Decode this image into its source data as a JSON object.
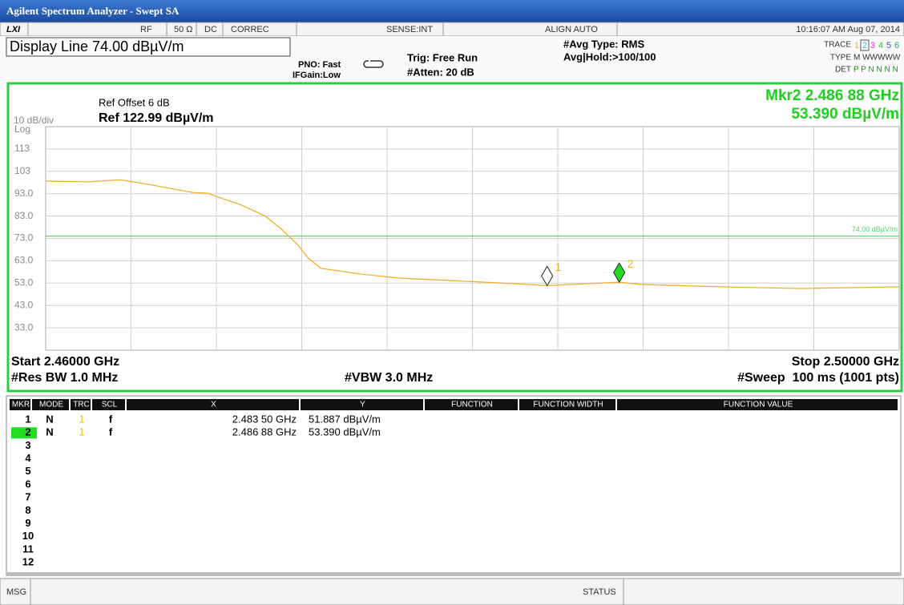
{
  "window_title": "Agilent Spectrum Analyzer - Swept SA",
  "status_bar": {
    "logo": "LXI",
    "rf": "RF",
    "impedance": "50 Ω",
    "coupling": "DC",
    "correction": "CORREC",
    "sense": "SENSE:INT",
    "align": "ALIGN AUTO",
    "datetime": "10:16:07 AM Aug 07, 2014"
  },
  "header": {
    "active_function": "Display Line 74.00 dBµV/m",
    "pno": "PNO: Fast",
    "if_gain": "IFGain:Low",
    "trigger": "Trig: Free Run",
    "attenuation": "#Atten: 20 dB",
    "avg_type": "#Avg Type: RMS",
    "avg_hold": "Avg|Hold:>100/100",
    "trace_label": "TRACE",
    "trace_numbers": [
      "1",
      "2",
      "3",
      "4",
      "5",
      "6"
    ],
    "type_label": "TYPE",
    "type_values": "M WWWWW",
    "det_label": "DET",
    "det_values": "P P N N N N"
  },
  "chart_data": {
    "type": "line",
    "ref_offset": "Ref Offset 6 dB",
    "scale": "10 dB/div",
    "ref_level": "Ref 122.99 dBµV/m",
    "scale_type": "Log",
    "marker_readout": "Mkr2 2.486 88 GHz",
    "marker_readout_value": "53.390 dBµV/m",
    "start": "Start 2.46000 GHz",
    "stop": "Stop 2.50000 GHz",
    "rbw": "#Res BW 1.0 MHz",
    "vbw": "#VBW 3.0 MHz",
    "sweep": "#Sweep  100 ms (1001 pts)",
    "xlim": [
      2.46,
      2.5
    ],
    "ylim": [
      22.99,
      122.99
    ],
    "yticks": [
      {
        "value": 112.99,
        "label": "113"
      },
      {
        "value": 102.99,
        "label": "103"
      },
      {
        "value": 92.99,
        "label": "93.0"
      },
      {
        "value": 82.99,
        "label": "83.0"
      },
      {
        "value": 72.99,
        "label": "73.0"
      },
      {
        "value": 62.99,
        "label": "63.0"
      },
      {
        "value": 52.99,
        "label": "53.0"
      },
      {
        "value": 42.99,
        "label": "43.0"
      },
      {
        "value": 32.99,
        "label": "33.0"
      }
    ],
    "grid": true,
    "x": [
      2.46,
      2.462,
      2.4635,
      2.4646,
      2.4669,
      2.4676,
      2.4682,
      2.4691,
      2.4703,
      2.471,
      2.4718,
      2.4723,
      2.4729,
      2.4748,
      2.4766,
      2.4804,
      2.4835,
      2.48688,
      2.4879,
      2.4917,
      2.4954,
      2.5
    ],
    "series": [
      {
        "color": "#f0b12a",
        "values": [
          98.6,
          98.3,
          99.2,
          97.5,
          93.5,
          93.2,
          91.1,
          88.2,
          82.9,
          77.5,
          70.3,
          64.2,
          59.6,
          57.0,
          55.2,
          53.5,
          51.887,
          53.39,
          52.4,
          51.3,
          50.6,
          51.3
        ]
      }
    ],
    "display_line": {
      "value": 74,
      "label": "74.00 dBµV/m",
      "color": "#5ad35a"
    },
    "markers": [
      {
        "label": "1",
        "x": 2.4835,
        "y": 51.887,
        "fill": "#ffffff"
      },
      {
        "label": "2",
        "x": 2.48688,
        "y": 53.39,
        "fill": "#22dd22"
      }
    ]
  },
  "marker_table": {
    "columns": [
      "MKR",
      "MODE",
      "TRC",
      "SCL",
      "X",
      "Y",
      "FUNCTION",
      "FUNCTION WIDTH",
      "FUNCTION VALUE"
    ],
    "rows": [
      [
        "1",
        "N",
        "1",
        "f",
        "2.483 50 GHz",
        "51.887 dBµV/m"
      ],
      [
        "2",
        "N",
        "1",
        "f",
        "2.486 88 GHz",
        "53.390 dBµV/m"
      ],
      [
        "3"
      ],
      [
        "4"
      ],
      [
        "5"
      ],
      [
        "6"
      ],
      [
        "7"
      ],
      [
        "8"
      ],
      [
        "9"
      ],
      [
        "10"
      ],
      [
        "11"
      ],
      [
        "12"
      ]
    ]
  },
  "footer": {
    "msg": "MSG",
    "status": "STATUS"
  }
}
